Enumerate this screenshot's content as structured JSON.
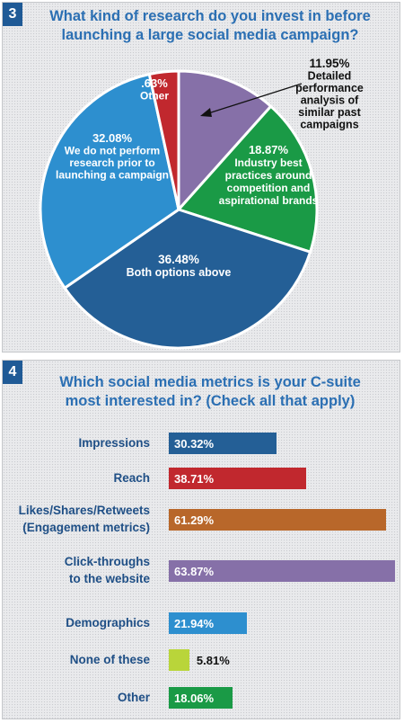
{
  "chart_data": [
    {
      "type": "pie",
      "number": "3",
      "title_lines": [
        "What kind of research do you invest in before",
        "launching a large social media campaign?"
      ],
      "slices": [
        {
          "value": 11.95,
          "value_label": "11.95%",
          "label_lines": [
            "Detailed",
            "performance",
            "analysis of",
            "similar past",
            "campaigns"
          ],
          "color": "#8670a8"
        },
        {
          "value": 18.87,
          "value_label": "18.87%",
          "label_lines": [
            "Industry best",
            "practices around",
            "competition and",
            "aspirational brands"
          ],
          "color": "#1a9a46"
        },
        {
          "value": 36.48,
          "value_label": "36.48%",
          "label_lines": [
            "Both options above"
          ],
          "color": "#245f96"
        },
        {
          "value": 32.08,
          "value_label": "32.08%",
          "label_lines": [
            "We do not perform",
            "research prior to",
            "launching a campaign"
          ],
          "color": "#2d8fcf"
        },
        {
          "value": 0.63,
          "value_label": ".63%",
          "label_lines": [
            "Other"
          ],
          "color": "#c1282e"
        }
      ]
    },
    {
      "type": "bar",
      "orientation": "horizontal",
      "number": "4",
      "title_lines": [
        "Which social media metrics is your C-suite",
        "most interested in? (Check all that apply)"
      ],
      "bars": [
        {
          "label_lines": [
            "Impressions"
          ],
          "value": 30.32,
          "value_label": "30.32%",
          "color": "#245f96"
        },
        {
          "label_lines": [
            "Reach"
          ],
          "value": 38.71,
          "value_label": "38.71%",
          "color": "#c1282e"
        },
        {
          "label_lines": [
            "Likes/Shares/Retweets",
            "(Engagement metrics)"
          ],
          "value": 61.29,
          "value_label": "61.29%",
          "color": "#b8672a"
        },
        {
          "label_lines": [
            "Click-throughs",
            "to the website"
          ],
          "value": 63.87,
          "value_label": "63.87%",
          "color": "#8670a8"
        },
        {
          "label_lines": [
            "Demographics"
          ],
          "value": 21.94,
          "value_label": "21.94%",
          "color": "#2d8fcf"
        },
        {
          "label_lines": [
            "None of these"
          ],
          "value": 5.81,
          "value_label": "5.81%",
          "color": "#b9d53a"
        },
        {
          "label_lines": [
            "Other"
          ],
          "value": 18.06,
          "value_label": "18.06%",
          "color": "#1a9a46"
        }
      ]
    }
  ]
}
